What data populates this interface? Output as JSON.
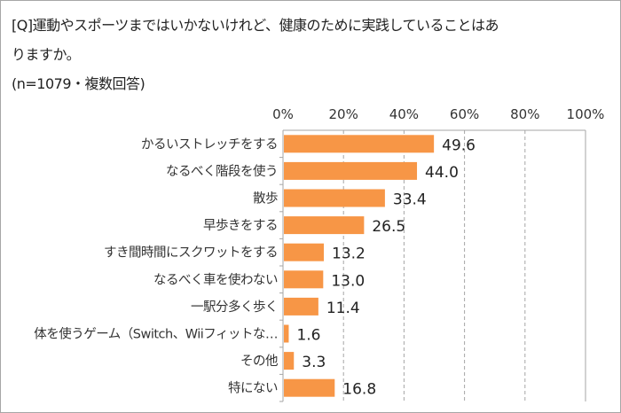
{
  "chart_data": {
    "type": "bar",
    "orientation": "horizontal",
    "title_lines": [
      "[Q]運動やスポーツまではいかないけれど、健康のために実践していることはあ",
      "りますか。"
    ],
    "subtitle": "(n=1079・複数回答)",
    "categories": [
      "かるいストレッチをする",
      "なるべく階段を使う",
      "散歩",
      "早歩きをする",
      "すき間時間にスクワットをする",
      "なるべく車を使わない",
      "一駅分多く歩く",
      "体を使うゲーム（Switch、Wiiフィットな…",
      "その他",
      "特にない"
    ],
    "values": [
      49.6,
      44.0,
      33.4,
      26.5,
      13.2,
      13.0,
      11.4,
      1.6,
      3.3,
      16.8
    ],
    "xlim": [
      0,
      100
    ],
    "x_ticks": [
      "0%",
      "20%",
      "40%",
      "60%",
      "80%",
      "100%"
    ],
    "x_axis_position": "top",
    "grid": "vertical dashed",
    "bar_color": "#F79646"
  }
}
